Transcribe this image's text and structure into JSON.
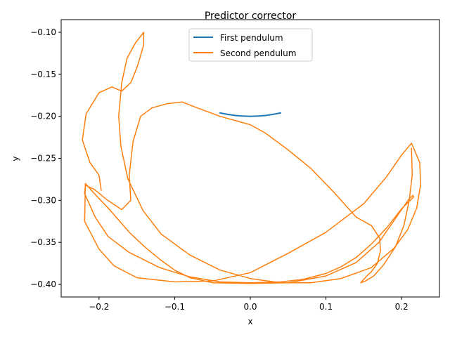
{
  "chart_data": {
    "type": "line",
    "title": "Predictor corrector",
    "xlabel": "x",
    "ylabel": "y",
    "xlim": [
      -0.25,
      0.25
    ],
    "ylim": [
      -0.415,
      -0.085
    ],
    "xticks": [
      -0.2,
      -0.1,
      0.0,
      0.1,
      0.2
    ],
    "xtick_labels": [
      "−0.2",
      "−0.1",
      "0.0",
      "0.1",
      "0.2"
    ],
    "yticks": [
      -0.4,
      -0.35,
      -0.3,
      -0.25,
      -0.2,
      -0.15,
      -0.1
    ],
    "ytick_labels": [
      "−0.40",
      "−0.35",
      "−0.30",
      "−0.25",
      "−0.20",
      "−0.15",
      "−0.10"
    ],
    "grid": false,
    "legend_position": "top-center",
    "series": [
      {
        "name": "First pendulum",
        "color": "#1f77b4",
        "x": [
          -0.04,
          -0.03,
          -0.02,
          -0.01,
          0.0,
          0.01,
          0.02,
          0.03,
          0.04
        ],
        "y": [
          -0.196,
          -0.1977,
          -0.199,
          -0.1997,
          -0.2,
          -0.1997,
          -0.199,
          -0.1977,
          -0.196
        ]
      },
      {
        "name": "Second pendulum",
        "color": "#ff7f0e",
        "x": [
          -0.197,
          -0.2,
          -0.212,
          -0.222,
          -0.217,
          -0.2,
          -0.183,
          -0.17,
          -0.158,
          -0.149,
          -0.141,
          -0.141,
          -0.152,
          -0.163,
          -0.17,
          -0.174,
          -0.171,
          -0.162,
          -0.142,
          -0.118,
          -0.08,
          -0.04,
          0.0,
          0.04,
          0.08,
          0.12,
          0.16,
          0.19,
          0.208,
          0.22,
          0.225,
          0.224,
          0.213,
          0.2,
          0.18,
          0.15,
          0.1,
          0.05,
          0.0,
          -0.05,
          -0.1,
          -0.15,
          -0.18,
          -0.2,
          -0.219,
          -0.218,
          -0.205,
          -0.185,
          -0.16,
          -0.14,
          -0.12,
          -0.1,
          -0.08,
          -0.05,
          0.0,
          0.05,
          0.1,
          0.14,
          0.17,
          0.2,
          0.21,
          0.215,
          0.216,
          0.2,
          0.18,
          0.16,
          0.14,
          0.12,
          0.1,
          0.07,
          0.04,
          0.0,
          -0.04,
          -0.08,
          -0.12,
          -0.16,
          -0.188,
          -0.205,
          -0.219,
          -0.218,
          -0.206,
          -0.19,
          -0.17,
          -0.158,
          -0.16,
          -0.155,
          -0.145,
          -0.13,
          -0.11,
          -0.09,
          -0.07,
          -0.04,
          0.0,
          0.02,
          0.05,
          0.08,
          0.11,
          0.14,
          0.16,
          0.171,
          0.172,
          0.168,
          0.16,
          0.154,
          0.148,
          0.146,
          0.152,
          0.163,
          0.176,
          0.192,
          0.203,
          0.21,
          0.214,
          0.213
        ],
        "y": [
          -0.288,
          -0.27,
          -0.255,
          -0.228,
          -0.197,
          -0.172,
          -0.165,
          -0.17,
          -0.16,
          -0.14,
          -0.115,
          -0.1,
          -0.113,
          -0.131,
          -0.16,
          -0.2,
          -0.236,
          -0.274,
          -0.312,
          -0.34,
          -0.365,
          -0.383,
          -0.393,
          -0.398,
          -0.398,
          -0.393,
          -0.38,
          -0.357,
          -0.335,
          -0.309,
          -0.282,
          -0.255,
          -0.232,
          -0.246,
          -0.272,
          -0.304,
          -0.338,
          -0.363,
          -0.386,
          -0.396,
          -0.397,
          -0.392,
          -0.378,
          -0.358,
          -0.325,
          -0.28,
          -0.293,
          -0.312,
          -0.338,
          -0.355,
          -0.37,
          -0.383,
          -0.392,
          -0.398,
          -0.399,
          -0.398,
          -0.39,
          -0.374,
          -0.35,
          -0.311,
          -0.298,
          -0.294,
          -0.296,
          -0.31,
          -0.333,
          -0.352,
          -0.368,
          -0.379,
          -0.387,
          -0.394,
          -0.397,
          -0.398,
          -0.397,
          -0.391,
          -0.38,
          -0.362,
          -0.343,
          -0.32,
          -0.292,
          -0.282,
          -0.287,
          -0.299,
          -0.311,
          -0.3,
          -0.27,
          -0.23,
          -0.2,
          -0.19,
          -0.185,
          -0.183,
          -0.19,
          -0.2,
          -0.21,
          -0.22,
          -0.24,
          -0.262,
          -0.29,
          -0.32,
          -0.33,
          -0.345,
          -0.36,
          -0.375,
          -0.385,
          -0.39,
          -0.396,
          -0.398,
          -0.396,
          -0.39,
          -0.377,
          -0.355,
          -0.33,
          -0.3,
          -0.27,
          -0.238
        ]
      }
    ]
  }
}
